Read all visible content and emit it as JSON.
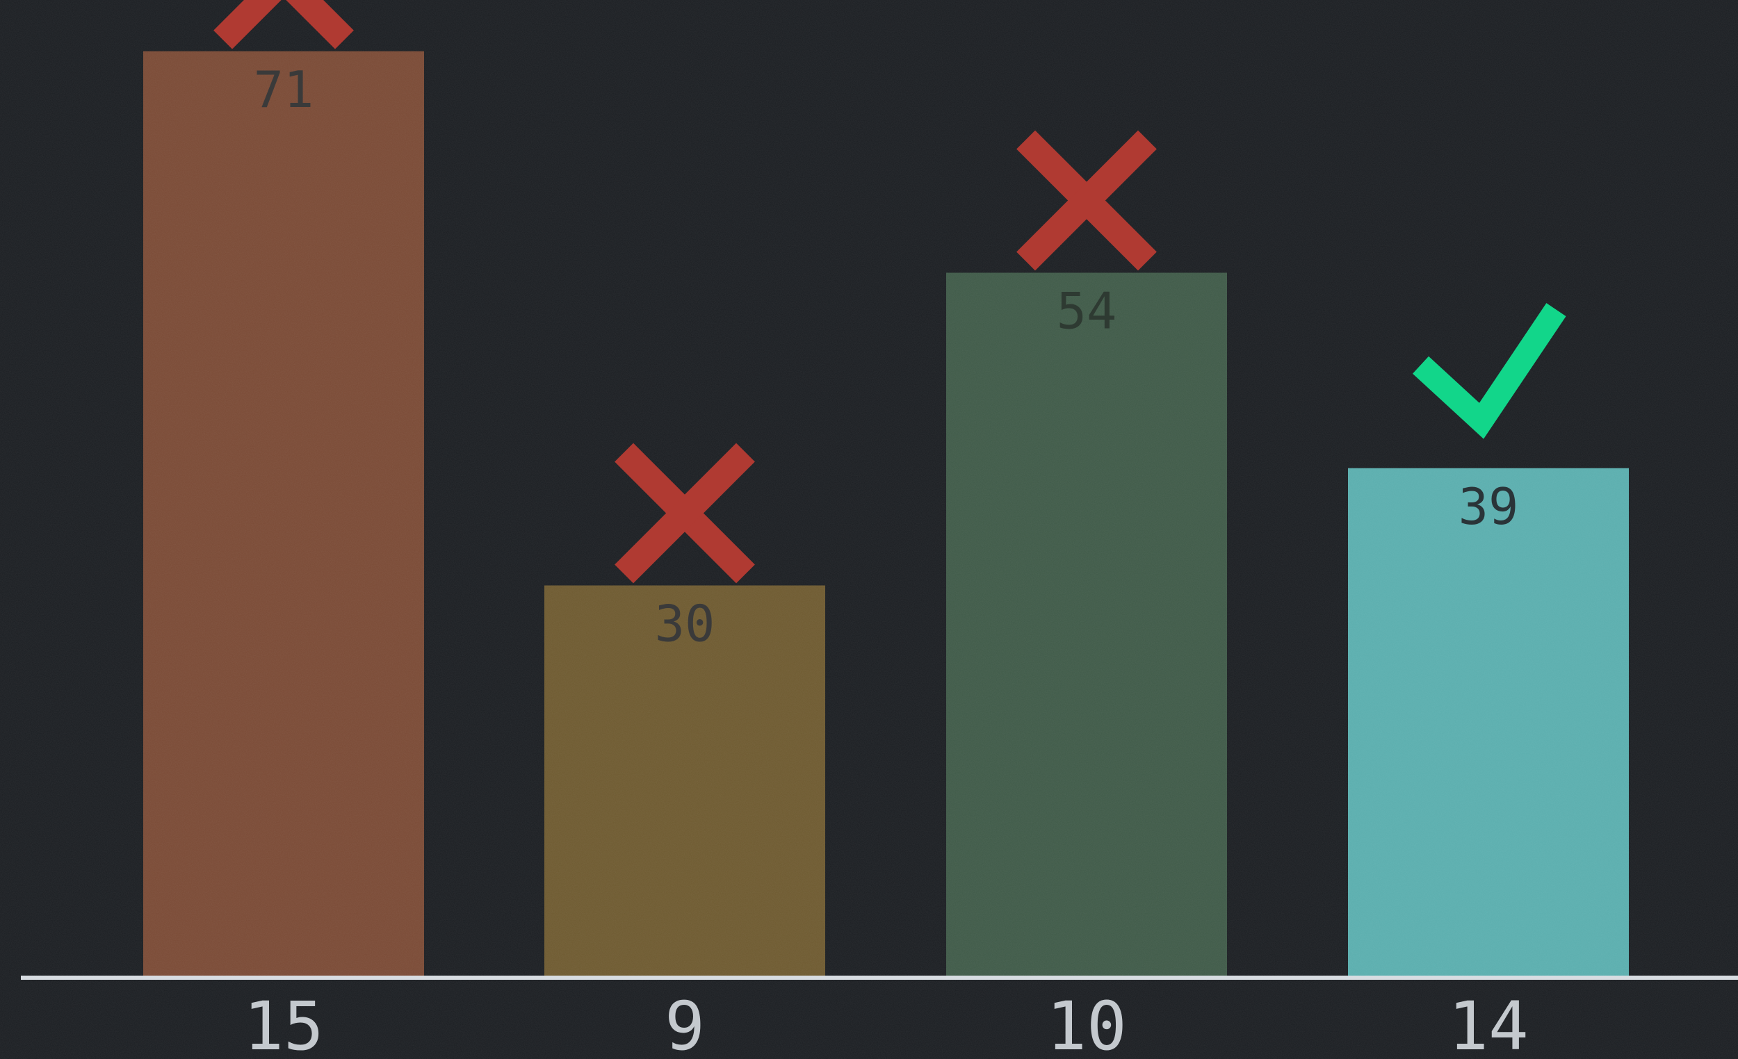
{
  "chart_data": {
    "type": "bar",
    "categories": [
      "15",
      "9",
      "10",
      "14"
    ],
    "values": [
      71,
      30,
      54,
      39
    ],
    "ylim": [
      0,
      80
    ],
    "grid": false,
    "legend": "none",
    "title": "",
    "xlabel": "",
    "ylabel": "",
    "bar_colors": [
      "#7a4a35",
      "#6e5a30",
      "#3f5a48",
      "#5aaeae"
    ],
    "marks": [
      "cross-icon",
      "cross-icon",
      "cross-icon",
      "check-icon"
    ],
    "mark_colors": {
      "cross-icon": "#b03a32",
      "check-icon": "#12d68a"
    },
    "value_label_colors": [
      "#3a3a3a",
      "#3a3a3a",
      "#2e3a32",
      "#2a3438"
    ],
    "axis_color": "#d8dde2",
    "tick_label_color": "#c4c9ce",
    "background": "#1b1e22"
  }
}
